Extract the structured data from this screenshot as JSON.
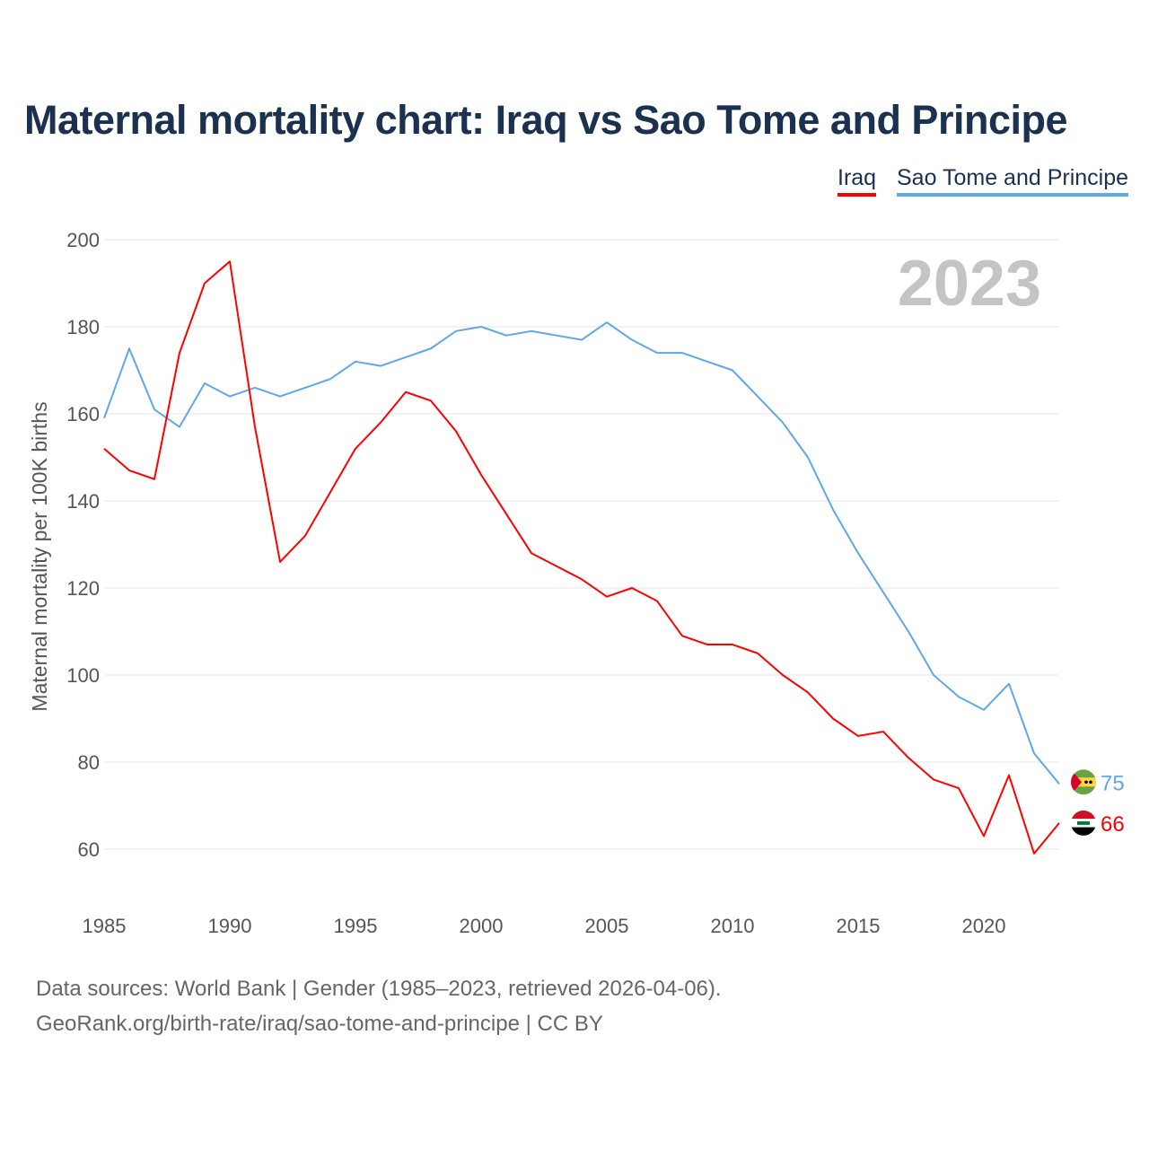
{
  "chart_data": {
    "type": "line",
    "title": "Maternal mortality chart: Iraq vs Sao Tome and Principe",
    "ylabel": "Maternal mortality per 100K births",
    "xlabel": "",
    "year_label": "2023",
    "xlim": [
      1985,
      2023
    ],
    "ylim": [
      50,
      200
    ],
    "x_ticks": [
      1985,
      1990,
      1995,
      2000,
      2005,
      2010,
      2015,
      2020
    ],
    "y_ticks": [
      60,
      80,
      100,
      120,
      140,
      160,
      180,
      200
    ],
    "grid": true,
    "legend_position": "top-right",
    "x": [
      1985,
      1986,
      1987,
      1988,
      1989,
      1990,
      1991,
      1992,
      1993,
      1994,
      1995,
      1996,
      1997,
      1998,
      1999,
      2000,
      2001,
      2002,
      2003,
      2004,
      2005,
      2006,
      2007,
      2008,
      2009,
      2010,
      2011,
      2012,
      2013,
      2014,
      2015,
      2016,
      2017,
      2018,
      2019,
      2020,
      2021,
      2022,
      2023
    ],
    "series": [
      {
        "name": "Iraq",
        "color": "#ff0000",
        "end_label": "66",
        "values": [
          152,
          147,
          145,
          174,
          190,
          195,
          157,
          126,
          132,
          142,
          152,
          158,
          165,
          163,
          156,
          146,
          137,
          128,
          125,
          122,
          118,
          120,
          117,
          109,
          107,
          107,
          105,
          100,
          96,
          90,
          86,
          87,
          81,
          76,
          74,
          63,
          77,
          59,
          66
        ]
      },
      {
        "name": "Sao Tome and Principe",
        "color": "#5fa8e8",
        "end_label": "75",
        "values": [
          159,
          175,
          161,
          157,
          167,
          164,
          166,
          164,
          166,
          168,
          172,
          171,
          173,
          175,
          179,
          180,
          178,
          179,
          178,
          177,
          181,
          177,
          174,
          174,
          172,
          170,
          164,
          158,
          150,
          138,
          128,
          119,
          110,
          100,
          95,
          92,
          98,
          82,
          75
        ]
      }
    ]
  },
  "footer": {
    "line1": "Data sources: World Bank | Gender (1985–2023, retrieved 2026-04-06).",
    "line2": "GeoRank.org/birth-rate/iraq/sao-tome-and-principe | CC BY"
  }
}
